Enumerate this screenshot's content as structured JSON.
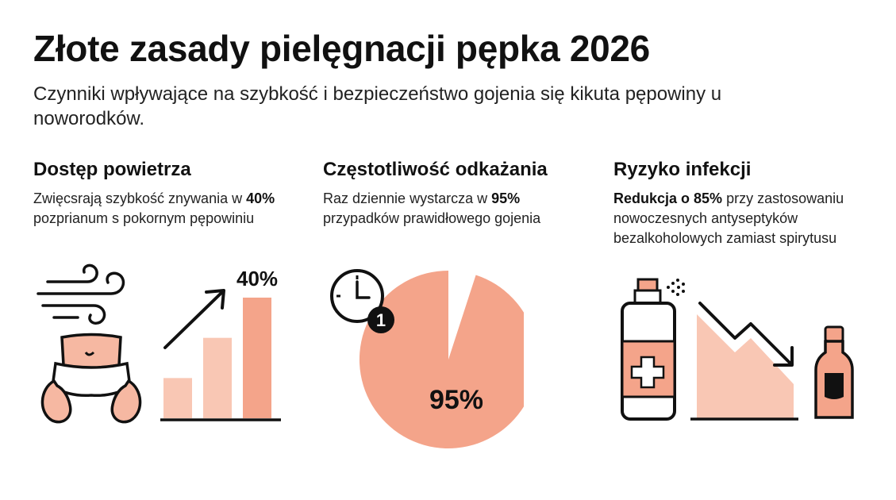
{
  "title": "Złote zasady pielęgnacji pępka 2026",
  "subtitle": "Czynniki wpływające na szybkość i bezpieczeństwo gojenia się kikuta pępowiny u noworodków.",
  "colors": {
    "accent": "#F4A48A",
    "accent_light": "#F9C7B4",
    "ink": "#111111"
  },
  "columns": [
    {
      "title": "Dostęp powietrza",
      "text_before": "Zwięcsrają szybkość znywania w ",
      "text_bold": "40%",
      "text_after": " pozprianum s pokornym pępowiniu",
      "icon": "wind-baby-icon",
      "chart_label": "40%",
      "chart_data": {
        "type": "bar",
        "values": [
          1,
          2,
          3
        ],
        "highlight_label": "40%"
      }
    },
    {
      "title": "Częstotliwość odkażania",
      "text_before": "Raz dziennie wystarcza w ",
      "text_bold": "95%",
      "text_after": " przypadków prawidłowego gojenia",
      "icon": "clock-once-icon",
      "clock_badge": "1",
      "chart_label": "95%",
      "chart_data": {
        "type": "pie",
        "values": [
          95,
          5
        ],
        "highlight_label": "95%"
      }
    },
    {
      "title": "Ryzyko infekcji",
      "text_bold": "Redukcja o 85%",
      "text_after": " przy zastosowaniu nowoczesnych antyseptyków bezalkoholowych zamiast spirytusu",
      "icon": "spray-bottle-icon"
    }
  ]
}
